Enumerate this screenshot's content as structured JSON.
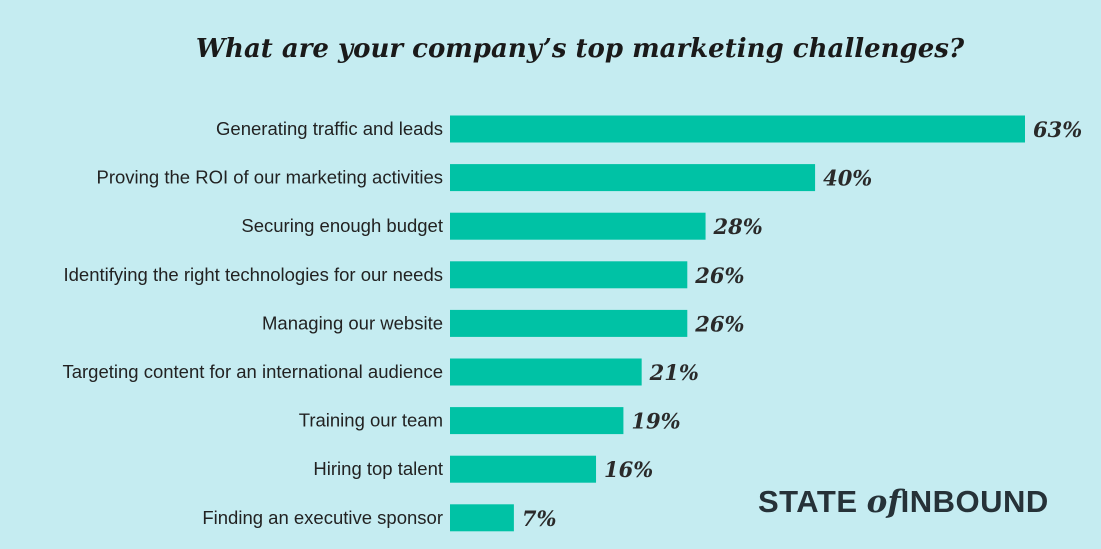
{
  "chart_data": {
    "type": "bar",
    "orientation": "horizontal",
    "title": "What are your company’s top marketing challenges?",
    "categories": [
      "Generating traffic and leads",
      "Proving the ROI of our marketing activities",
      "Securing enough budget",
      "Identifying the right technologies for our needs",
      "Managing our website",
      "Targeting content for an international audience",
      "Training our team",
      "Hiring top talent",
      "Finding an executive sponsor"
    ],
    "values": [
      63,
      40,
      28,
      26,
      26,
      21,
      19,
      16,
      7
    ],
    "value_labels": [
      "63%",
      "40%",
      "28%",
      "26%",
      "26%",
      "21%",
      "19%",
      "16%",
      "7%"
    ],
    "unit": "%",
    "xlim": [
      0,
      63
    ],
    "grid": false,
    "legend": "none",
    "colors": {
      "bar": "#00c2a5",
      "background": "#c5ecf1"
    }
  },
  "branding": {
    "state": "STATE",
    "of": "of",
    "inbound": "INBOUND"
  }
}
